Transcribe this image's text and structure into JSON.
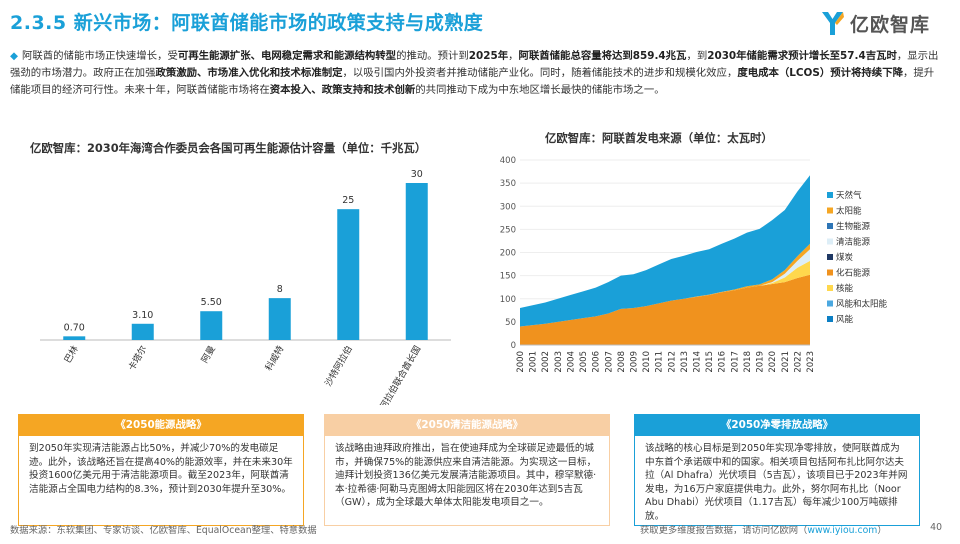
{
  "header": {
    "title": "2.3.5 新兴市场：阿联酋储能市场的政策支持与成熟度",
    "logo_text": "亿欧智库"
  },
  "intro": {
    "s1": "阿联酋的储能市场正快速增长，受",
    "b1": "可再生能源扩张、电网稳定需求和能源结构转型",
    "s2": "的推动。预计到",
    "b2": "2025年",
    "s3": "，",
    "b3": "阿联酋储能总容量将达到859.4兆瓦",
    "s4": "，到",
    "b4": "2030年储能需求预计增长至57.4吉瓦时",
    "s5": "，显示出强劲的市场潜力。政府正在加强",
    "b5": "政策激励、市场准入优化和技术标准制定",
    "s6": "，以吸引国内外投资者并推动储能产业化。同时，随着储能技术的进步和规模化效应，",
    "b6": "度电成本（LCOS）预计将持续下降",
    "s7": "，提升储能项目的经济可行性。未来十年，阿联酋储能市场将在",
    "b7": "资本投入、政策支持和技术创新",
    "s8": "的共同推动下成为中东地区增长最快的储能市场之一。"
  },
  "left_chart_title": "亿欧智库：2030年海湾合作委员会各国可再生能源估计容量（单位：千兆瓦）",
  "right_chart_title": "亿欧智库：阿联酋发电来源（单位：太瓦时）",
  "chart_data": [
    {
      "type": "bar",
      "title": "亿欧智库：2030年海湾合作委员会各国可再生能源估计容量（单位：千兆瓦）",
      "categories": [
        "巴林",
        "卡塔尔",
        "阿曼",
        "科威特",
        "沙特阿拉伯",
        "阿拉伯联合酋长国"
      ],
      "values": [
        0.7,
        3.1,
        5.5,
        8,
        25,
        30
      ],
      "labels": [
        "0.70",
        "3.10",
        "5.50",
        "8",
        "25",
        "30"
      ],
      "color": "#1aa0d8",
      "ylim": [
        0,
        30
      ]
    },
    {
      "type": "area",
      "title": "亿欧智库：阿联酋发电来源（单位：太瓦时）",
      "x": [
        "2000",
        "2001",
        "2002",
        "2003",
        "2004",
        "2005",
        "2006",
        "2007",
        "2008",
        "2009",
        "2010",
        "2011",
        "2012",
        "2013",
        "2014",
        "2015",
        "2016",
        "2017",
        "2018",
        "2019",
        "2020",
        "2021",
        "2022",
        "2023"
      ],
      "yticks": [
        0,
        50,
        100,
        150,
        200,
        250,
        300,
        350,
        400
      ],
      "ylim": [
        0,
        400
      ],
      "series": [
        {
          "name": "天然气",
          "color": "#1aa0d8",
          "values": [
            40,
            43,
            46,
            50,
            54,
            58,
            62,
            68,
            72,
            73,
            78,
            84,
            90,
            93,
            96,
            98,
            104,
            110,
            116,
            120,
            128,
            130,
            140,
            148
          ]
        },
        {
          "name": "太阳能",
          "color": "#f5a623",
          "values": [
            0,
            0,
            0,
            0,
            0,
            0,
            0,
            0,
            0,
            0,
            0,
            0,
            0,
            0,
            1,
            1,
            1,
            2,
            3,
            3,
            6,
            8,
            10,
            12
          ]
        },
        {
          "name": "生物能源",
          "color": "#2e75b6",
          "values": [
            0,
            0,
            0,
            0,
            0,
            0,
            0,
            0,
            0,
            0,
            0,
            0,
            0,
            0,
            0,
            0,
            0,
            0,
            0,
            0,
            0,
            0,
            0,
            0
          ]
        },
        {
          "name": "清洁能源",
          "color": "#ddeef7",
          "values": [
            0,
            0,
            0,
            0,
            0,
            0,
            0,
            0,
            0,
            0,
            0,
            0,
            0,
            0,
            0,
            0,
            0,
            0,
            0,
            0,
            2,
            8,
            15,
            25
          ]
        },
        {
          "name": "煤炭",
          "color": "#1f3864",
          "values": [
            0,
            0,
            0,
            0,
            0,
            0,
            0,
            0,
            0,
            0,
            0,
            0,
            0,
            0,
            0,
            0,
            0,
            0,
            0,
            0,
            0,
            0,
            0,
            0
          ]
        },
        {
          "name": "化石能源",
          "color": "#f0921e",
          "values": [
            40,
            43,
            46,
            50,
            54,
            58,
            62,
            68,
            78,
            80,
            84,
            90,
            96,
            100,
            104,
            108,
            114,
            118,
            124,
            128,
            132,
            136,
            145,
            152
          ]
        },
        {
          "name": "核能",
          "color": "#ffd84d",
          "values": [
            0,
            0,
            0,
            0,
            0,
            0,
            0,
            0,
            0,
            0,
            0,
            0,
            0,
            0,
            0,
            0,
            0,
            0,
            0,
            0,
            2,
            10,
            22,
            30
          ]
        },
        {
          "name": "风能和太阳能",
          "color": "#4ba8e0",
          "values": [
            0,
            0,
            0,
            0,
            0,
            0,
            0,
            0,
            0,
            0,
            0,
            0,
            0,
            0,
            0,
            0,
            0,
            0,
            0,
            0,
            0,
            0,
            0,
            0
          ]
        },
        {
          "name": "风能",
          "color": "#0c7fc4",
          "values": [
            0,
            0,
            0,
            0,
            0,
            0,
            0,
            0,
            0,
            0,
            0,
            0,
            0,
            0,
            0,
            0,
            0,
            0,
            0,
            0,
            0,
            0,
            0,
            0
          ]
        }
      ]
    }
  ],
  "boxes": [
    {
      "title": "《2050能源战略》",
      "body": "到2050年实现清洁能源占比50%，并减少70%的发电碳足迹。此外，该战略还旨在提高40%的能源效率，并在未来30年投资1600亿美元用于清洁能源项目。截至2023年，阿联酋清洁能源占全国电力结构的8.3%，预计到2030年提升至30%。"
    },
    {
      "title": "《2050清洁能源战略》",
      "body": "该战略由迪拜政府推出，旨在使迪拜成为全球碳足迹最低的城市，并确保75%的能源供应来自清洁能源。为实现这一目标，迪拜计划投资136亿美元发展清洁能源项目。其中，穆罕默德·本·拉希德·阿勒马克图姆太阳能园区将在2030年达到5吉瓦（GW），成为全球最大单体太阳能发电项目之一。"
    },
    {
      "title": "《2050净零排放战略》",
      "body": "该战略的核心目标是到2050年实现净零排放，使阿联酋成为中东首个承诺碳中和的国家。相关项目包括阿布扎比阿尔达夫拉（Al Dhafra）光伏项目（5吉瓦），该项目已于2023年并网发电，为16万户家庭提供电力。此外，努尔阿布扎比（Noor Abu Dhabi）光伏项目（1.17吉瓦）每年减少100万吨碳排放。"
    }
  ],
  "footer": {
    "source": "数据来源：东软集团、专家访谈、亿欧智库、EqualOcean整理、特意数据",
    "cta": "获取更多维度报告数据，请访问亿欧网（",
    "link": "www.iyiou.com",
    "cta_end": "）",
    "page": "40"
  }
}
